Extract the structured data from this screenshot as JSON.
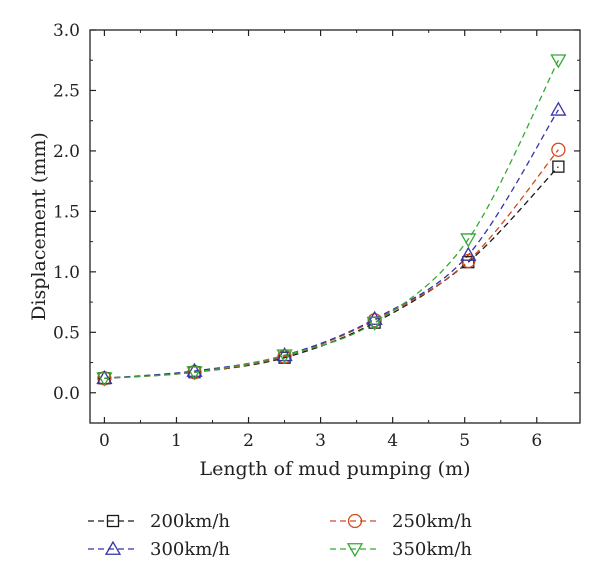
{
  "chart_data": {
    "type": "line",
    "title": "",
    "xlabel": "Length of mud pumping (m)",
    "ylabel": "Displacement (mm)",
    "xlim": [
      -0.2,
      6.6
    ],
    "ylim": [
      -0.25,
      3.0
    ],
    "x_ticks": [
      "0",
      "1",
      "2",
      "3",
      "4",
      "5",
      "6"
    ],
    "y_ticks": [
      "0.0",
      "0.5",
      "1.0",
      "1.5",
      "2.0",
      "2.5",
      "3.0"
    ],
    "x": [
      0,
      1.25,
      2.5,
      3.75,
      5.05,
      6.3
    ],
    "grid": false,
    "legend_position": "bottom",
    "series": [
      {
        "name": "200km/h",
        "values": [
          0.12,
          0.17,
          0.29,
          0.58,
          1.08,
          1.87
        ],
        "color": "#1a1a1a",
        "marker": "square"
      },
      {
        "name": "250km/h",
        "values": [
          0.12,
          0.17,
          0.3,
          0.6,
          1.09,
          2.01
        ],
        "color": "#d04a1e",
        "marker": "circle"
      },
      {
        "name": "300km/h",
        "values": [
          0.12,
          0.18,
          0.31,
          0.61,
          1.14,
          2.34
        ],
        "color": "#3333aa",
        "marker": "triangle-up"
      },
      {
        "name": "350km/h",
        "values": [
          0.12,
          0.17,
          0.31,
          0.58,
          1.27,
          2.75
        ],
        "color": "#33aa33",
        "marker": "triangle-down"
      }
    ]
  }
}
